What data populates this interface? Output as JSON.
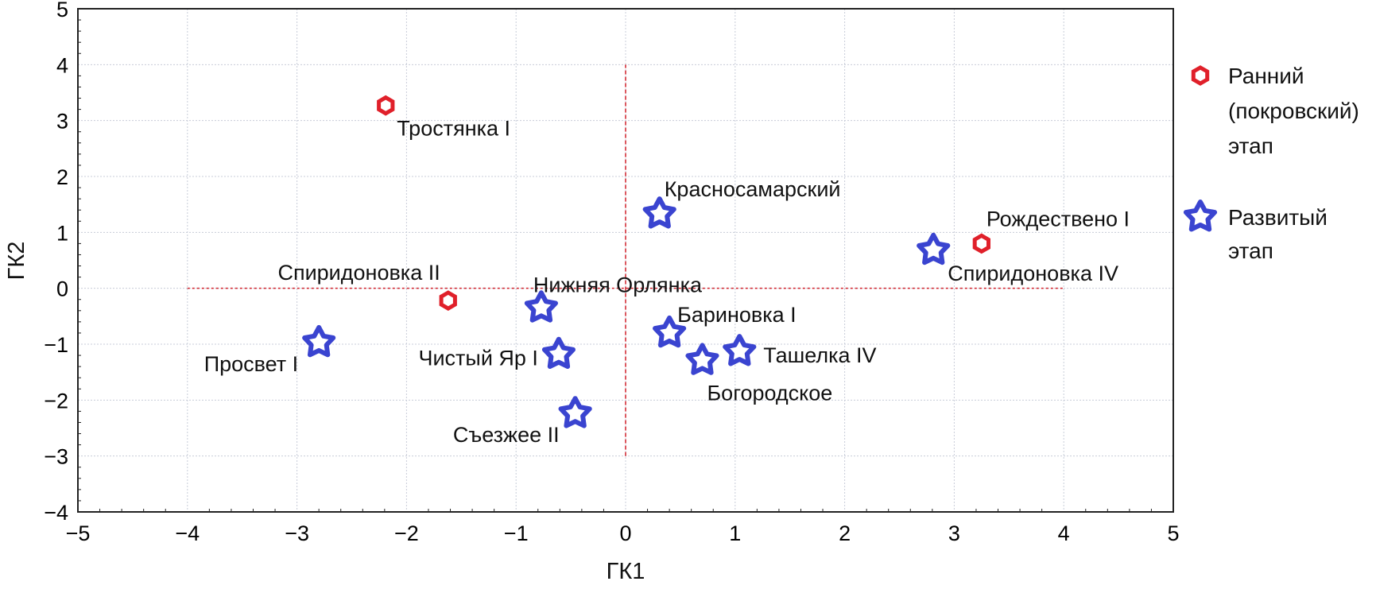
{
  "chart_data": {
    "type": "scatter",
    "title": "",
    "xlabel": "ГК1",
    "ylabel": "ГК2",
    "xlim": [
      -5,
      5
    ],
    "ylim": [
      -4,
      5
    ],
    "xticks": [
      "−5",
      "−4",
      "−3",
      "−2",
      "−1",
      "0",
      "1",
      "2",
      "3",
      "4",
      "5"
    ],
    "yticks": [
      "−4",
      "−3",
      "−2",
      "−1",
      "0",
      "1",
      "2",
      "3",
      "4",
      "5"
    ],
    "grid": true,
    "legend_position": "right",
    "reference_lines": {
      "horizontal": {
        "y": 0,
        "x_from": -4,
        "x_to": 4
      },
      "vertical": {
        "x": 0,
        "y_from": -3,
        "y_to": 4
      },
      "color": "#d0202a"
    },
    "series": [
      {
        "name": "Ранний (покровский) этап",
        "legend_lines": [
          "Ранний",
          "(покровский)",
          "этап"
        ],
        "marker": "hexagon",
        "color": "#e0202a",
        "points": [
          {
            "label": "Тростянка I",
            "x": -2.19,
            "y": 3.27
          },
          {
            "label": "Спиридоновка II",
            "x": -1.62,
            "y": -0.22
          },
          {
            "label": "Рождествено I",
            "x": 3.25,
            "y": 0.8
          }
        ]
      },
      {
        "name": "Развитый этап",
        "legend_lines": [
          "Развитый",
          "этап"
        ],
        "marker": "star",
        "color": "#3a44d0",
        "points": [
          {
            "label": "Красносамарский",
            "x": 0.31,
            "y": 1.33
          },
          {
            "label": "Спиридоновка IV",
            "x": 2.81,
            "y": 0.68
          },
          {
            "label": "Нижняя Орлянка",
            "x": -0.77,
            "y": -0.35
          },
          {
            "label": "Просвет I",
            "x": -2.8,
            "y": -0.97
          },
          {
            "label": "Чистый Яр I",
            "x": -0.61,
            "y": -1.18
          },
          {
            "label": "Бариновка I",
            "x": 0.4,
            "y": -0.8
          },
          {
            "label": "Богородское",
            "x": 0.7,
            "y": -1.29
          },
          {
            "label": "Ташелка IV",
            "x": 1.04,
            "y": -1.13
          },
          {
            "label": "Съезжее II",
            "x": -0.46,
            "y": -2.24
          }
        ]
      }
    ]
  }
}
